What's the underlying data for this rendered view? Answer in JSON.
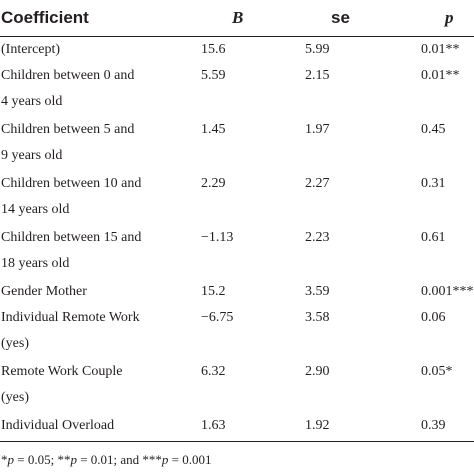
{
  "table": {
    "headers": {
      "coefficient": "Coefficient",
      "b": "B",
      "se": "se",
      "p": "p"
    },
    "rows": [
      {
        "name_line1": "(Intercept)",
        "name_line2": "",
        "b": "15.6",
        "se": "5.99",
        "p": "0.01**"
      },
      {
        "name_line1": "Children between 0 and",
        "name_line2": "4 years old",
        "b": "5.59",
        "se": "2.15",
        "p": "0.01**"
      },
      {
        "name_line1": "Children between 5 and",
        "name_line2": "9 years old",
        "b": "1.45",
        "se": "1.97",
        "p": "0.45"
      },
      {
        "name_line1": "Children between 10 and",
        "name_line2": "14 years old",
        "b": "2.29",
        "se": "2.27",
        "p": "0.31"
      },
      {
        "name_line1": "Children between 15 and",
        "name_line2": "18 years old",
        "b": "−1.13",
        "se": "2.23",
        "p": "0.61"
      },
      {
        "name_line1": "Gender Mother",
        "name_line2": "",
        "b": "15.2",
        "se": "3.59",
        "p": "0.001***"
      },
      {
        "name_line1": "Individual Remote Work",
        "name_line2": "(yes)",
        "b": "−6.75",
        "se": "3.58",
        "p": "0.06"
      },
      {
        "name_line1": "Remote Work Couple",
        "name_line2": "(yes)",
        "b": "6.32",
        "se": "2.90",
        "p": "0.05*"
      },
      {
        "name_line1": "Individual Overload",
        "name_line2": "",
        "b": "1.63",
        "se": "1.92",
        "p": "0.39"
      }
    ]
  },
  "footnote": {
    "part1_star": "*",
    "part1_p": "p",
    "part1_val": " = 0.05; ",
    "part2_star": "**",
    "part2_p": "p",
    "part2_val": " = 0.01; and ",
    "part3_star": "***",
    "part3_p": "p",
    "part3_val": " = 0.001"
  }
}
